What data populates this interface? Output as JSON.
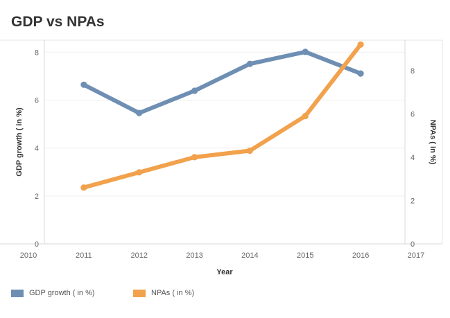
{
  "title": "GDP vs NPAs",
  "chart_data": {
    "type": "line",
    "title": "GDP vs NPAs",
    "xlabel": "Year",
    "ylabel": "GDP growth ( in %)",
    "y2label": "NPAs ( in %)",
    "x": [
      2011,
      2012,
      2013,
      2014,
      2015,
      2016
    ],
    "x_ticks": [
      "2010",
      "2011",
      "2012",
      "2013",
      "2014",
      "2015",
      "2016",
      "2017"
    ],
    "xlim": [
      2010,
      2017
    ],
    "ylim": [
      0,
      8.5
    ],
    "y_ticks": [
      "0",
      "2",
      "4",
      "6",
      "8"
    ],
    "y2lim": [
      0,
      9.4
    ],
    "y2_ticks": [
      "0",
      "2",
      "4",
      "6",
      "8"
    ],
    "grid": true,
    "legend_position": "bottom",
    "series": [
      {
        "name": "GDP growth ( in %)",
        "axis": "left",
        "color": "#6e8fb3",
        "values": [
          6.64,
          5.46,
          6.39,
          7.51,
          8.01,
          7.11
        ]
      },
      {
        "name": "NPAs ( in %)",
        "axis": "right",
        "color": "#f2a14c",
        "values": [
          2.6,
          3.3,
          4.0,
          4.3,
          5.9,
          9.2
        ]
      }
    ]
  }
}
